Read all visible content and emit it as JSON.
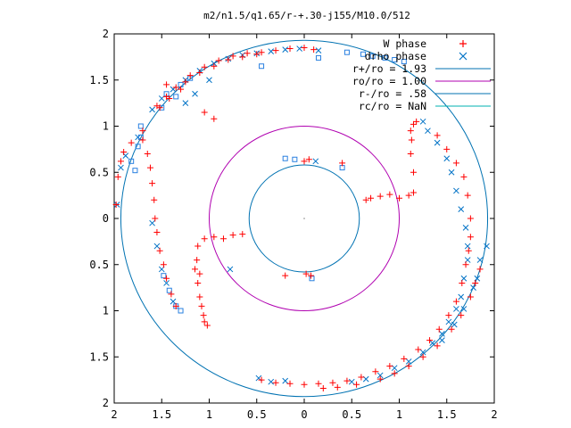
{
  "chart_data": {
    "type": "scatter",
    "title": "m2/n1.5/q1.65/r-+.30-j155/M10.0/512",
    "xlim": [
      -2,
      2
    ],
    "ylim": [
      -2,
      2
    ],
    "x_ticks": [
      "2",
      "1.5",
      "1",
      "0.5",
      "0",
      "0.5",
      "1",
      "1.5",
      "2"
    ],
    "y_ticks": [
      "2",
      "1.5",
      "1",
      "0.5",
      "0",
      "0.5",
      "1",
      "1.5",
      "2"
    ],
    "grid": false,
    "legend_position": "top-right",
    "colors": {
      "w_phase": "#ff0000",
      "drho_phase": "#0072c6",
      "ring_outer": "#0072b2",
      "ring_mid": "#b000b0",
      "ring_inner": "#0072b2",
      "ring_rc": "#00b0b0",
      "squares": "#2a80e0"
    },
    "legend": [
      {
        "label": "W phase",
        "marker": "plus",
        "color": "#ff0000"
      },
      {
        "label": "drho phase",
        "marker": "cross",
        "color": "#0072c6"
      },
      {
        "label": "r+/ro = 1.93",
        "marker": "line",
        "color": "#0072b2"
      },
      {
        "label": "ro/ro = 1.00",
        "marker": "line",
        "color": "#b000b0"
      },
      {
        "label": "r-/ro = .58",
        "marker": "line",
        "color": "#0072b2"
      },
      {
        "label": "rc/ro = NaN",
        "marker": "line",
        "color": "#00b0b0"
      }
    ],
    "circles": [
      {
        "name": "r+/ro",
        "r": 1.93
      },
      {
        "name": "ro/ro",
        "r": 1.0
      },
      {
        "name": "r-/ro",
        "r": 0.58
      }
    ],
    "series": [
      {
        "name": "W phase",
        "points": [
          [
            -1.98,
            0.15
          ],
          [
            -1.96,
            0.45
          ],
          [
            -1.93,
            0.62
          ],
          [
            -1.9,
            0.72
          ],
          [
            -1.82,
            0.82
          ],
          [
            -1.7,
            0.95
          ],
          [
            -1.55,
            1.22
          ],
          [
            -1.45,
            1.32
          ],
          [
            -1.35,
            1.42
          ],
          [
            -1.2,
            1.55
          ],
          [
            -1.05,
            1.64
          ],
          [
            -0.9,
            1.71
          ],
          [
            -0.75,
            1.76
          ],
          [
            -0.6,
            1.79
          ],
          [
            -0.45,
            1.8
          ],
          [
            -0.3,
            1.82
          ],
          [
            -0.15,
            1.84
          ],
          [
            0.0,
            1.85
          ],
          [
            0.1,
            1.83
          ],
          [
            -1.7,
            0.85
          ],
          [
            -1.65,
            0.7
          ],
          [
            -1.62,
            0.55
          ],
          [
            -1.6,
            0.38
          ],
          [
            -1.58,
            0.2
          ],
          [
            -1.57,
            0.0
          ],
          [
            -1.55,
            -0.15
          ],
          [
            -1.52,
            -0.35
          ],
          [
            -1.48,
            -0.5
          ],
          [
            -1.45,
            -0.65
          ],
          [
            -1.4,
            -0.82
          ],
          [
            -1.35,
            -0.95
          ],
          [
            -1.52,
            1.2
          ],
          [
            -1.42,
            1.3
          ],
          [
            -1.3,
            1.4
          ],
          [
            -1.25,
            1.48
          ],
          [
            -1.1,
            1.58
          ],
          [
            -0.95,
            1.65
          ],
          [
            -0.8,
            1.72
          ],
          [
            -0.65,
            1.75
          ],
          [
            -0.5,
            1.78
          ],
          [
            -1.15,
            -0.55
          ],
          [
            -1.12,
            -0.7
          ],
          [
            -1.1,
            -0.85
          ],
          [
            -1.08,
            -0.95
          ],
          [
            -1.06,
            -1.05
          ],
          [
            -1.05,
            -1.12
          ],
          [
            -1.02,
            -1.16
          ],
          [
            -1.12,
            -0.3
          ],
          [
            -1.13,
            -0.45
          ],
          [
            -1.1,
            -0.6
          ],
          [
            -1.05,
            -0.22
          ],
          [
            -0.95,
            -0.2
          ],
          [
            -0.85,
            -0.22
          ],
          [
            -0.75,
            -0.18
          ],
          [
            -0.65,
            -0.17
          ],
          [
            0.0,
            0.62
          ],
          [
            0.05,
            0.64
          ],
          [
            0.4,
            0.6
          ],
          [
            0.02,
            -0.6
          ],
          [
            0.07,
            -0.62
          ],
          [
            -0.2,
            -0.62
          ],
          [
            0.65,
            0.2
          ],
          [
            0.7,
            0.22
          ],
          [
            0.8,
            0.24
          ],
          [
            0.9,
            0.26
          ],
          [
            1.0,
            0.22
          ],
          [
            1.1,
            0.25
          ],
          [
            1.15,
            0.28
          ],
          [
            1.15,
            0.5
          ],
          [
            1.12,
            0.7
          ],
          [
            1.13,
            0.85
          ],
          [
            1.12,
            0.95
          ],
          [
            1.15,
            1.02
          ],
          [
            1.18,
            1.05
          ],
          [
            1.4,
            0.9
          ],
          [
            1.5,
            0.75
          ],
          [
            1.6,
            0.6
          ],
          [
            1.68,
            0.45
          ],
          [
            1.72,
            0.25
          ],
          [
            1.75,
            0.0
          ],
          [
            1.75,
            -0.2
          ],
          [
            1.73,
            -0.35
          ],
          [
            1.7,
            -0.5
          ],
          [
            1.66,
            -0.7
          ],
          [
            1.6,
            -0.9
          ],
          [
            1.52,
            -1.05
          ],
          [
            1.42,
            -1.2
          ],
          [
            1.32,
            -1.32
          ],
          [
            1.2,
            -1.42
          ],
          [
            1.05,
            -1.52
          ],
          [
            0.9,
            -1.6
          ],
          [
            0.75,
            -1.66
          ],
          [
            0.6,
            -1.72
          ],
          [
            0.45,
            -1.76
          ],
          [
            0.3,
            -1.78
          ],
          [
            0.15,
            -1.79
          ],
          [
            0.0,
            -1.8
          ],
          [
            -0.15,
            -1.79
          ],
          [
            -0.3,
            -1.78
          ],
          [
            -0.45,
            -1.75
          ],
          [
            1.85,
            -0.55
          ],
          [
            1.8,
            -0.7
          ],
          [
            1.75,
            -0.85
          ],
          [
            1.65,
            -1.05
          ],
          [
            1.55,
            -1.2
          ],
          [
            1.4,
            -1.38
          ],
          [
            1.25,
            -1.5
          ],
          [
            1.1,
            -1.6
          ],
          [
            0.95,
            -1.68
          ],
          [
            0.8,
            -1.74
          ],
          [
            0.55,
            -1.8
          ],
          [
            0.35,
            -1.83
          ],
          [
            0.2,
            -1.84
          ],
          [
            -1.05,
            1.15
          ],
          [
            -0.95,
            1.08
          ],
          [
            -1.45,
            1.45
          ]
        ]
      },
      {
        "name": "drho phase",
        "points": [
          [
            -1.97,
            0.15
          ],
          [
            -1.93,
            0.55
          ],
          [
            -1.88,
            0.68
          ],
          [
            -1.75,
            0.88
          ],
          [
            -1.6,
            1.18
          ],
          [
            -1.5,
            1.3
          ],
          [
            -1.38,
            1.4
          ],
          [
            -1.25,
            1.5
          ],
          [
            -1.1,
            1.6
          ],
          [
            -0.95,
            1.68
          ],
          [
            -0.8,
            1.73
          ],
          [
            -0.65,
            1.77
          ],
          [
            -0.5,
            1.79
          ],
          [
            -0.35,
            1.81
          ],
          [
            -0.2,
            1.83
          ],
          [
            -0.05,
            1.84
          ],
          [
            0.15,
            1.82
          ],
          [
            -1.6,
            -0.05
          ],
          [
            -1.55,
            -0.3
          ],
          [
            -1.5,
            -0.55
          ],
          [
            -1.45,
            -0.7
          ],
          [
            -1.38,
            -0.9
          ],
          [
            -1.25,
            1.25
          ],
          [
            -1.15,
            1.35
          ],
          [
            -1.0,
            1.5
          ],
          [
            -0.78,
            -0.55
          ],
          [
            0.12,
            0.62
          ],
          [
            1.25,
            1.05
          ],
          [
            1.3,
            0.95
          ],
          [
            1.4,
            0.82
          ],
          [
            1.5,
            0.65
          ],
          [
            1.55,
            0.5
          ],
          [
            1.6,
            0.3
          ],
          [
            1.65,
            0.1
          ],
          [
            1.7,
            -0.1
          ],
          [
            1.72,
            -0.3
          ],
          [
            1.72,
            -0.45
          ],
          [
            1.68,
            -0.65
          ],
          [
            1.65,
            -0.85
          ],
          [
            1.6,
            -0.98
          ],
          [
            1.52,
            -1.12
          ],
          [
            1.45,
            -1.25
          ],
          [
            1.35,
            -1.35
          ],
          [
            1.25,
            -1.45
          ],
          [
            1.1,
            -1.55
          ],
          [
            0.95,
            -1.62
          ],
          [
            0.8,
            -1.7
          ],
          [
            0.65,
            -1.74
          ],
          [
            0.5,
            -1.77
          ],
          [
            1.85,
            -0.45
          ],
          [
            1.82,
            -0.65
          ],
          [
            1.78,
            -0.75
          ],
          [
            1.68,
            -0.98
          ],
          [
            1.58,
            -1.15
          ],
          [
            1.45,
            -1.32
          ],
          [
            1.92,
            -0.3
          ],
          [
            -0.2,
            -1.76
          ],
          [
            -0.35,
            -1.77
          ],
          [
            -0.48,
            -1.73
          ]
        ]
      },
      {
        "name": "squares",
        "points": [
          [
            -1.82,
            0.62
          ],
          [
            -1.78,
            0.52
          ],
          [
            -1.75,
            0.78
          ],
          [
            -1.72,
            0.88
          ],
          [
            -1.72,
            1.0
          ],
          [
            -1.45,
            1.35
          ],
          [
            -1.3,
            1.45
          ],
          [
            -1.2,
            1.52
          ],
          [
            -0.45,
            1.65
          ],
          [
            0.45,
            1.8
          ],
          [
            -1.48,
            -0.62
          ],
          [
            -1.42,
            -0.78
          ],
          [
            -1.35,
            -0.95
          ],
          [
            -1.3,
            -1.0
          ],
          [
            -1.5,
            1.2
          ],
          [
            -1.35,
            1.32
          ],
          [
            -0.2,
            0.65
          ],
          [
            -0.1,
            0.64
          ],
          [
            0.4,
            0.55
          ],
          [
            0.08,
            -0.65
          ],
          [
            0.15,
            1.74
          ],
          [
            1.05,
            1.7
          ],
          [
            0.95,
            1.72
          ],
          [
            0.85,
            1.74
          ],
          [
            0.72,
            1.76
          ],
          [
            0.62,
            1.78
          ]
        ]
      }
    ]
  }
}
